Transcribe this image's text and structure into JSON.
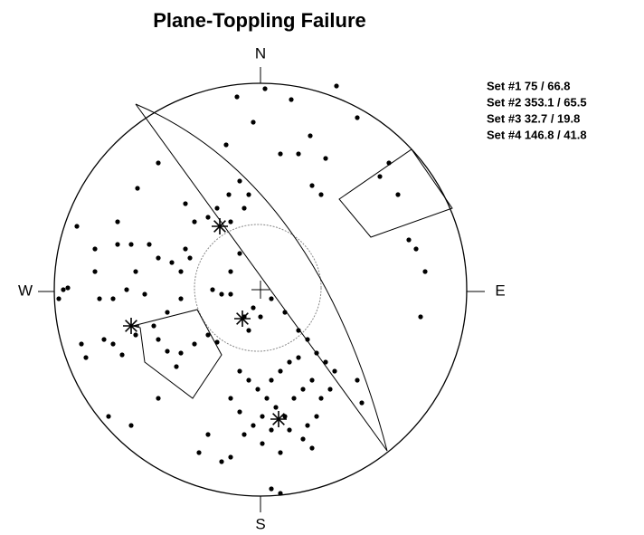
{
  "title": "Plane-Toppling Failure",
  "compass": {
    "north": "N",
    "east": "E",
    "south": "S",
    "west": "W"
  },
  "sets": [
    "Set #1  75   / 66.8",
    "Set #2  353.1  / 65.5",
    "Set #3  32.7   / 19.8",
    "Set #4  146.8  / 41.8"
  ]
}
